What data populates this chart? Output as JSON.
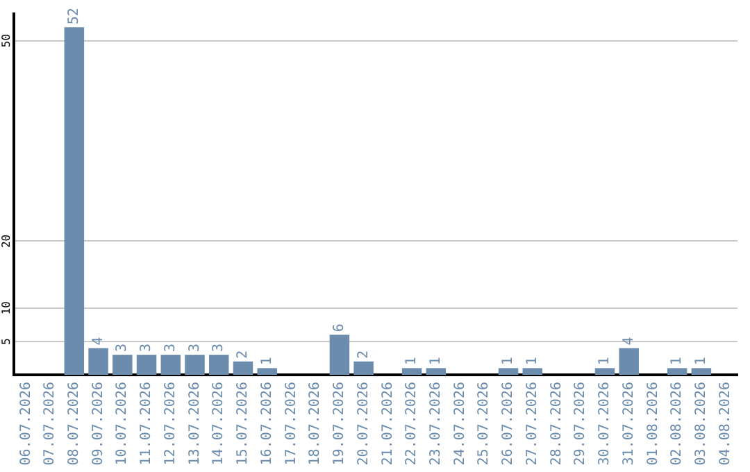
{
  "chart_data": {
    "type": "bar",
    "categories": [
      "06.07.2026",
      "07.07.2026",
      "08.07.2026",
      "09.07.2026",
      "10.07.2026",
      "11.07.2026",
      "12.07.2026",
      "13.07.2026",
      "14.07.2026",
      "15.07.2026",
      "16.07.2026",
      "17.07.2026",
      "18.07.2026",
      "19.07.2026",
      "20.07.2026",
      "21.07.2026",
      "22.07.2026",
      "23.07.2026",
      "24.07.2026",
      "25.07.2026",
      "26.07.2026",
      "27.07.2026",
      "28.07.2026",
      "29.07.2026",
      "30.07.2026",
      "31.07.2026",
      "01.08.2026",
      "02.08.2026",
      "03.08.2026",
      "04.08.2026"
    ],
    "values": [
      0,
      0,
      52,
      4,
      3,
      3,
      3,
      3,
      3,
      2,
      1,
      0,
      0,
      6,
      2,
      0,
      1,
      1,
      0,
      0,
      1,
      1,
      0,
      0,
      1,
      4,
      0,
      1,
      1,
      0
    ],
    "value_labels": [
      null,
      null,
      "52",
      "4",
      "3",
      "3",
      "3",
      "3",
      "3",
      "2",
      "1",
      null,
      null,
      "6",
      "2",
      null,
      "1",
      "1",
      null,
      null,
      "1",
      "1",
      null,
      null,
      "1",
      "4",
      null,
      "1",
      "1",
      null
    ],
    "color": "#6b8cad",
    "ylim": [
      0,
      54
    ],
    "yticks": [
      5,
      10,
      20,
      50
    ],
    "grid": "y",
    "legend": false
  }
}
